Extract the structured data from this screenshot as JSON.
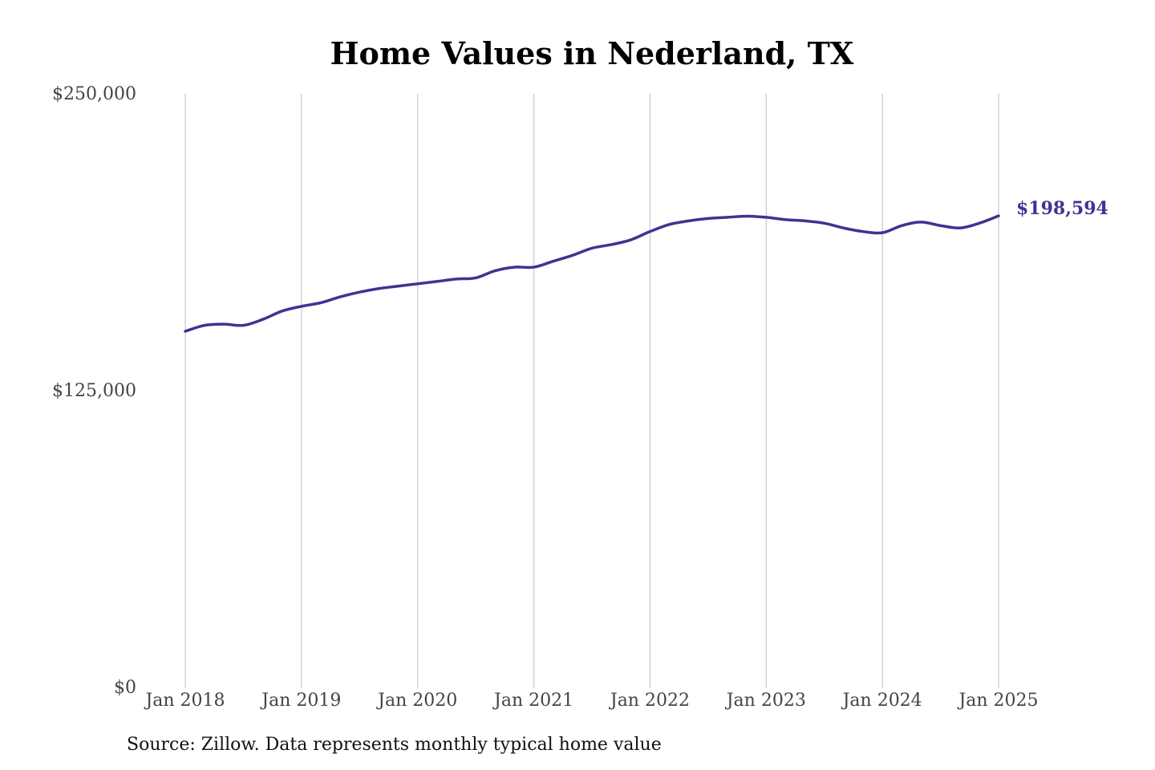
{
  "chart_data": {
    "type": "line",
    "title": "Home Values in Nederland, TX",
    "xlabel": "",
    "ylabel": "",
    "ylim": [
      0,
      250000
    ],
    "yticks": [
      0,
      125000,
      250000
    ],
    "ytick_labels": [
      "$0",
      "$125,000",
      "$250,000"
    ],
    "xticks": [
      "2018-01",
      "2019-01",
      "2020-01",
      "2021-01",
      "2022-01",
      "2023-01",
      "2024-01",
      "2025-01"
    ],
    "xtick_labels": [
      "Jan 2018",
      "Jan 2019",
      "Jan 2020",
      "Jan 2021",
      "Jan 2022",
      "Jan 2023",
      "Jan 2024",
      "Jan 2025"
    ],
    "grid": "vertical",
    "line_color": "#3b3591",
    "end_value_label": "$198,594",
    "series": [
      {
        "x": [
          "2018-01",
          "2018-03",
          "2018-05",
          "2018-07",
          "2018-09",
          "2018-11",
          "2019-01",
          "2019-03",
          "2019-05",
          "2019-07",
          "2019-09",
          "2019-11",
          "2020-01",
          "2020-03",
          "2020-05",
          "2020-07",
          "2020-09",
          "2020-11",
          "2021-01",
          "2021-03",
          "2021-05",
          "2021-07",
          "2021-09",
          "2021-11",
          "2022-01",
          "2022-03",
          "2022-05",
          "2022-07",
          "2022-09",
          "2022-11",
          "2023-01",
          "2023-03",
          "2023-05",
          "2023-07",
          "2023-09",
          "2023-11",
          "2024-01",
          "2024-03",
          "2024-05",
          "2024-07",
          "2024-09",
          "2024-11",
          "2025-01"
        ],
        "values": [
          150000,
          152500,
          153000,
          152500,
          155000,
          158500,
          160500,
          162000,
          164500,
          166500,
          168000,
          169000,
          170000,
          171000,
          172000,
          172500,
          175500,
          177000,
          177000,
          179500,
          182000,
          185000,
          186500,
          188500,
          192000,
          195000,
          196500,
          197500,
          198000,
          198500,
          198000,
          197000,
          196500,
          195500,
          193500,
          192000,
          191500,
          194500,
          196000,
          194500,
          193500,
          195500,
          198594
        ]
      }
    ]
  },
  "source_note": "Source: Zillow. Data represents monthly typical home value"
}
